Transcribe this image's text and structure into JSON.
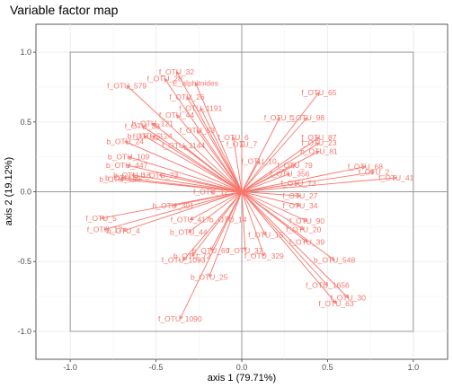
{
  "chart_data": {
    "type": "scatter",
    "title": "Variable factor map",
    "xlabel": "axis 1 (79.71%)",
    "ylabel": "axis 2 (19.12%)",
    "xlim": [
      -1.2,
      1.2
    ],
    "ylim": [
      -1.2,
      1.2
    ],
    "x_ticks": [
      "-1.0",
      "-0.5",
      "0.0",
      "0.5",
      "1.0"
    ],
    "y_ticks": [
      "-1.0",
      "-0.5",
      "0.0",
      "0.5",
      "1.0"
    ],
    "grid": true,
    "unit_box": [
      -1,
      1
    ],
    "arrow_color": "#f8766d",
    "variables": [
      {
        "name": "f_OTU_32",
        "x": -0.38,
        "y": 0.86
      },
      {
        "name": "f_OTU_28",
        "x": -0.45,
        "y": 0.81
      },
      {
        "name": "E_alphitoides",
        "x": -0.27,
        "y": 0.78
      },
      {
        "name": "f_OTU_579",
        "x": -0.67,
        "y": 0.76
      },
      {
        "name": "f_OTU_26",
        "x": -0.32,
        "y": 0.68
      },
      {
        "name": "f_OTU_1191",
        "x": -0.24,
        "y": 0.6
      },
      {
        "name": "f_OTU_65",
        "x": 0.45,
        "y": 0.71
      },
      {
        "name": "f_OTU_44",
        "x": -0.38,
        "y": 0.55
      },
      {
        "name": "f_OTU_98",
        "x": 0.38,
        "y": 0.53
      },
      {
        "name": "f_OTU_1",
        "x": 0.22,
        "y": 0.53
      },
      {
        "name": "b_OTU_121",
        "x": -0.52,
        "y": 0.49
      },
      {
        "name": "f_OTU_38",
        "x": -0.58,
        "y": 0.47
      },
      {
        "name": "f_OTU_53",
        "x": -0.26,
        "y": 0.44
      },
      {
        "name": "f_OTU_87",
        "x": 0.45,
        "y": 0.39
      },
      {
        "name": "b_OTU_5",
        "x": -0.57,
        "y": 0.4
      },
      {
        "name": "f_OTU_124",
        "x": -0.52,
        "y": 0.4
      },
      {
        "name": "f_OTU_6",
        "x": -0.05,
        "y": 0.39
      },
      {
        "name": "f_OTU_23",
        "x": 0.45,
        "y": 0.35
      },
      {
        "name": "b_OTU_24",
        "x": -0.68,
        "y": 0.36
      },
      {
        "name": "f_OTU_1144",
        "x": -0.34,
        "y": 0.33
      },
      {
        "name": "f_OTU_7",
        "x": 0.0,
        "y": 0.34
      },
      {
        "name": "b_OTU_81",
        "x": 0.45,
        "y": 0.29
      },
      {
        "name": "b_OTU_109",
        "x": -0.66,
        "y": 0.25
      },
      {
        "name": "f_OTU_10",
        "x": 0.1,
        "y": 0.22
      },
      {
        "name": "f_OTU_79",
        "x": 0.31,
        "y": 0.19
      },
      {
        "name": "f_OTU_68",
        "x": 0.72,
        "y": 0.18
      },
      {
        "name": "b_OTU_447",
        "x": -0.67,
        "y": 0.19
      },
      {
        "name": "f_OTU_2",
        "x": 0.77,
        "y": 0.14
      },
      {
        "name": "f_OTU_356",
        "x": 0.28,
        "y": 0.13
      },
      {
        "name": "f_OTU_41",
        "x": 0.9,
        "y": 0.1
      },
      {
        "name": "b_OTU_18",
        "x": -0.64,
        "y": 0.12
      },
      {
        "name": "b_OTU_23",
        "x": -0.48,
        "y": 0.12
      },
      {
        "name": "f_OTU_73",
        "x": 0.33,
        "y": 0.06
      },
      {
        "name": "b_OTU_2",
        "x": -0.7,
        "y": 0.1
      },
      {
        "name": "b_OTU_168",
        "x": -0.71,
        "y": 0.09
      },
      {
        "name": "f_OTU_12",
        "x": -0.18,
        "y": 0.0
      },
      {
        "name": "f_OTU_27",
        "x": 0.34,
        "y": -0.03
      },
      {
        "name": "f_OTU_34",
        "x": 0.34,
        "y": -0.1
      },
      {
        "name": "b_OTU_301",
        "x": -0.4,
        "y": -0.1
      },
      {
        "name": "f_OTU_5",
        "x": -0.82,
        "y": -0.19
      },
      {
        "name": "f_OTU_90",
        "x": 0.38,
        "y": -0.21
      },
      {
        "name": "f_OTU_417",
        "x": -0.3,
        "y": -0.2
      },
      {
        "name": "b_OTU_14",
        "x": -0.08,
        "y": -0.2
      },
      {
        "name": "f_OTU_17",
        "x": -0.8,
        "y": -0.27
      },
      {
        "name": "b_OTU_4",
        "x": -0.69,
        "y": -0.28
      },
      {
        "name": "f_OTU_20",
        "x": 0.36,
        "y": -0.27
      },
      {
        "name": "b_OTU_44",
        "x": -0.31,
        "y": -0.29
      },
      {
        "name": "f_OTU_15",
        "x": 0.14,
        "y": -0.31
      },
      {
        "name": "f_OTU_39",
        "x": 0.38,
        "y": -0.36
      },
      {
        "name": "b_OTU_69",
        "x": -0.18,
        "y": -0.42
      },
      {
        "name": "f_OTU_37",
        "x": 0.02,
        "y": -0.42
      },
      {
        "name": "b_OTU_72",
        "x": -0.29,
        "y": -0.46
      },
      {
        "name": "f_OTU_329",
        "x": 0.13,
        "y": -0.46
      },
      {
        "name": "b_OTU_548",
        "x": 0.54,
        "y": -0.49
      },
      {
        "name": "f_OTU_1093",
        "x": -0.34,
        "y": -0.49
      },
      {
        "name": "b_OTU_25",
        "x": -0.19,
        "y": -0.61
      },
      {
        "name": "f_OTU_1656",
        "x": 0.5,
        "y": -0.67
      },
      {
        "name": "f_OTU_30",
        "x": 0.62,
        "y": -0.76
      },
      {
        "name": "f_OTU_63",
        "x": 0.55,
        "y": -0.8
      },
      {
        "name": "f_OTU_1090",
        "x": -0.36,
        "y": -0.91
      }
    ]
  }
}
